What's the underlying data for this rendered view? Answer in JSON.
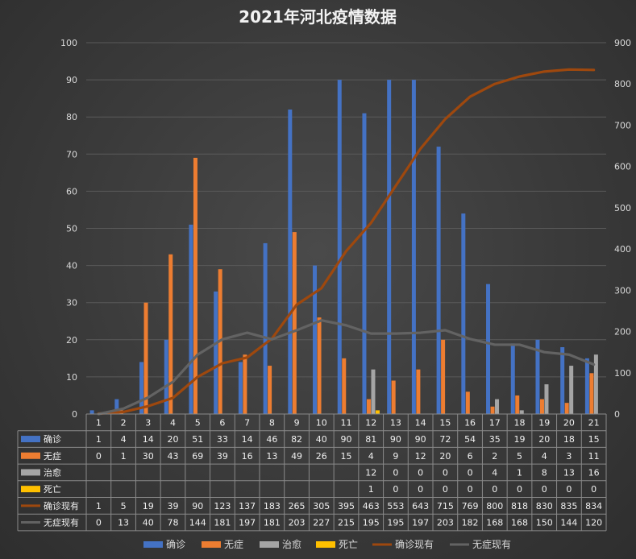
{
  "chart_data": {
    "type": "bar",
    "title": "2021年河北疫情数据",
    "categories": [
      "1",
      "2",
      "3",
      "4",
      "5",
      "6",
      "7",
      "8",
      "9",
      "10",
      "11",
      "12",
      "13",
      "14",
      "15",
      "16",
      "17",
      "18",
      "19",
      "20",
      "21"
    ],
    "left_axis": {
      "min": 0,
      "max": 100,
      "step": 10,
      "ticks": [
        "0",
        "10",
        "20",
        "30",
        "40",
        "50",
        "60",
        "70",
        "80",
        "90",
        "100"
      ]
    },
    "right_axis": {
      "min": 0,
      "max": 900,
      "step": 100,
      "ticks": [
        "0",
        "100",
        "200",
        "300",
        "400",
        "500",
        "600",
        "700",
        "800",
        "900"
      ]
    },
    "gridlines": true,
    "legend_position": "bottom",
    "data_table": true,
    "series": [
      {
        "name": "确诊",
        "type": "bar",
        "axis": "left",
        "color": "#4472c4",
        "values": [
          1,
          4,
          14,
          20,
          51,
          33,
          14,
          46,
          82,
          40,
          90,
          81,
          90,
          90,
          72,
          54,
          35,
          19,
          20,
          18,
          15
        ]
      },
      {
        "name": "无症",
        "type": "bar",
        "axis": "left",
        "color": "#ed7d31",
        "values": [
          0,
          1,
          30,
          43,
          69,
          39,
          16,
          13,
          49,
          26,
          15,
          4,
          9,
          12,
          20,
          6,
          2,
          5,
          4,
          3,
          11
        ]
      },
      {
        "name": "治愈",
        "type": "bar",
        "axis": "left",
        "color": "#a5a5a5",
        "values": [
          null,
          null,
          null,
          null,
          null,
          null,
          null,
          null,
          null,
          null,
          null,
          12,
          0,
          0,
          0,
          0,
          4,
          1,
          8,
          13,
          16
        ]
      },
      {
        "name": "死亡",
        "type": "bar",
        "axis": "left",
        "color": "#ffc000",
        "values": [
          null,
          null,
          null,
          null,
          null,
          null,
          null,
          null,
          null,
          null,
          null,
          1,
          0,
          0,
          0,
          0,
          0,
          0,
          0,
          0,
          0
        ]
      },
      {
        "name": "确诊现有",
        "type": "line",
        "axis": "right",
        "color": "#9e480e",
        "values": [
          1,
          5,
          19,
          39,
          90,
          123,
          137,
          183,
          265,
          305,
          395,
          463,
          553,
          643,
          715,
          769,
          800,
          818,
          830,
          835,
          834
        ]
      },
      {
        "name": "无症现有",
        "type": "line",
        "axis": "right",
        "color": "#636363",
        "values": [
          0,
          13,
          40,
          78,
          144,
          181,
          197,
          181,
          203,
          227,
          215,
          195,
          195,
          197,
          203,
          182,
          168,
          168,
          150,
          144,
          120
        ]
      }
    ]
  }
}
